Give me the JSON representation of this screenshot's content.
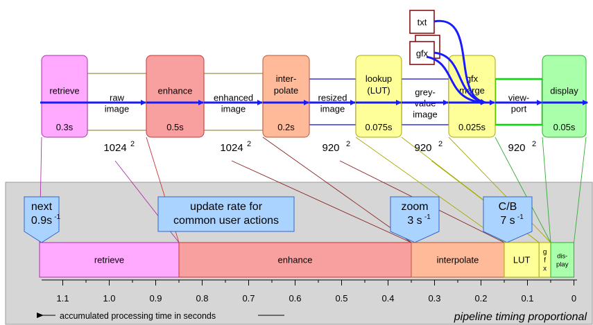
{
  "pipeline": {
    "stages": [
      {
        "id": "retrieve",
        "label": [
          "retrieve"
        ],
        "time": "0.3s",
        "fill": "#ffaaff",
        "stroke": "#aa33aa"
      },
      {
        "id": "enhance",
        "label": [
          "enhance"
        ],
        "time": "0.5s",
        "fill": "#f8a0a0",
        "stroke": "#cc3333"
      },
      {
        "id": "interpolate",
        "label": [
          "inter-",
          "polate"
        ],
        "time": "0.2s",
        "fill": "#ffbb99",
        "stroke": "#bb5533"
      },
      {
        "id": "lookup",
        "label": [
          "lookup",
          "(LUT)"
        ],
        "time": "0.075s",
        "fill": "#ffff99",
        "stroke": "#aaaa00"
      },
      {
        "id": "gfx-merge",
        "label": [
          "gfx",
          "merge"
        ],
        "time": "0.025s",
        "fill": "#ffff99",
        "stroke": "#aaaa00"
      },
      {
        "id": "display",
        "label": [
          "display"
        ],
        "time": "0.05s",
        "fill": "#aaffaa",
        "stroke": "#33aa33"
      }
    ],
    "data_boxes": [
      {
        "id": "raw-image",
        "label": [
          "raw",
          "image"
        ],
        "size": "1024",
        "stroke": "#998844"
      },
      {
        "id": "enhanced-image",
        "label": [
          "enhanced",
          "image"
        ],
        "size": "1024",
        "stroke": "#998844"
      },
      {
        "id": "resized-image",
        "label": [
          "resized",
          "image"
        ],
        "size": "920",
        "stroke": "#0000cc"
      },
      {
        "id": "grey-value-image",
        "label": [
          "grey-",
          "value",
          "image"
        ],
        "size": "920",
        "stroke": "#0000cc"
      },
      {
        "id": "viewport",
        "label": [
          "view-",
          "port"
        ],
        "size": "920",
        "stroke": "#00dd00"
      }
    ],
    "size_exponent": "2",
    "overlays": [
      {
        "id": "txt",
        "label": "txt"
      },
      {
        "id": "gfx",
        "label": "gfx"
      }
    ]
  },
  "timing_panel": {
    "rates": [
      {
        "id": "next",
        "lines": [
          "next",
          "0.9s"
        ],
        "exp": "-1"
      },
      {
        "id": "update-rate",
        "lines": [
          "update rate for",
          "common user actions"
        ],
        "exp": ""
      },
      {
        "id": "zoom",
        "lines": [
          "zoom",
          "3 s"
        ],
        "exp": "-1"
      },
      {
        "id": "cb",
        "lines": [
          "C/B",
          "7 s"
        ],
        "exp": "-1"
      }
    ],
    "bar": [
      {
        "id": "retrieve",
        "label": [
          "retrieve"
        ],
        "time": 0.3,
        "fill": "#ffaaff",
        "stroke": "#aa33aa"
      },
      {
        "id": "enhance",
        "label": [
          "enhance"
        ],
        "time": 0.5,
        "fill": "#f8a0a0",
        "stroke": "#cc3333"
      },
      {
        "id": "interpolate",
        "label": [
          "interpolate"
        ],
        "time": 0.2,
        "fill": "#ffbb99",
        "stroke": "#bb5533"
      },
      {
        "id": "lut",
        "label": [
          "LUT"
        ],
        "time": 0.075,
        "fill": "#ffff99",
        "stroke": "#aaaa00"
      },
      {
        "id": "gfx",
        "label": [
          "g",
          "f",
          "x"
        ],
        "time": 0.025,
        "fill": "#ffff99",
        "stroke": "#aaaa00"
      },
      {
        "id": "display",
        "label": [
          "dis-",
          "play"
        ],
        "time": 0.05,
        "fill": "#aaffaa",
        "stroke": "#33aa33"
      }
    ],
    "axis_ticks": [
      "1.1",
      "1.0",
      "0.9",
      "0.8",
      "0.7",
      "0.6",
      "0.5",
      "0.4",
      "0.3",
      "0.2",
      "0.1",
      "0"
    ],
    "axis_label": "accumulated processing time in seconds",
    "caption": "pipeline timing proportional"
  }
}
